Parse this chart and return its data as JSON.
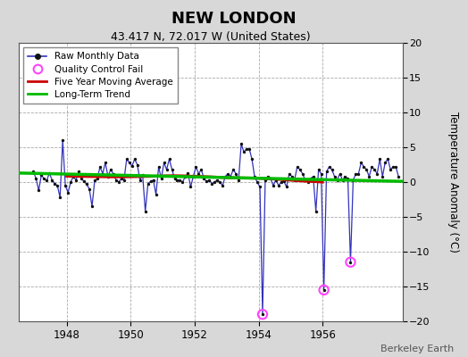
{
  "title": "NEW LONDON",
  "subtitle": "43.417 N, 72.017 W (United States)",
  "ylabel": "Temperature Anomaly (°C)",
  "credit": "Berkeley Earth",
  "xlim": [
    1946.5,
    1958.5
  ],
  "ylim": [
    -20,
    20
  ],
  "yticks": [
    -20,
    -15,
    -10,
    -5,
    0,
    5,
    10,
    15,
    20
  ],
  "xticks": [
    1948,
    1950,
    1952,
    1954,
    1956
  ],
  "bg_color": "#d8d8d8",
  "plot_bg_color": "#ffffff",
  "raw_color": "#3333bb",
  "dot_color": "#111111",
  "ma_color": "#cc0000",
  "trend_color": "#00bb00",
  "qc_color": "#ff44ff",
  "raw_data": [
    [
      1946.958,
      1.5
    ],
    [
      1947.042,
      0.5
    ],
    [
      1947.125,
      -1.2
    ],
    [
      1947.208,
      1.0
    ],
    [
      1947.292,
      0.5
    ],
    [
      1947.375,
      0.2
    ],
    [
      1947.458,
      1.3
    ],
    [
      1947.542,
      0.3
    ],
    [
      1947.625,
      -0.2
    ],
    [
      1947.708,
      -0.5
    ],
    [
      1947.792,
      -2.2
    ],
    [
      1947.875,
      6.0
    ],
    [
      1947.958,
      -0.5
    ],
    [
      1948.042,
      -1.5
    ],
    [
      1948.125,
      0.0
    ],
    [
      1948.208,
      0.8
    ],
    [
      1948.292,
      0.3
    ],
    [
      1948.375,
      1.5
    ],
    [
      1948.458,
      0.5
    ],
    [
      1948.542,
      0.1
    ],
    [
      1948.625,
      -0.3
    ],
    [
      1948.708,
      -1.0
    ],
    [
      1948.792,
      -3.5
    ],
    [
      1948.875,
      0.2
    ],
    [
      1948.958,
      0.5
    ],
    [
      1949.042,
      2.2
    ],
    [
      1949.125,
      1.2
    ],
    [
      1949.208,
      2.8
    ],
    [
      1949.292,
      0.8
    ],
    [
      1949.375,
      1.8
    ],
    [
      1949.458,
      1.2
    ],
    [
      1949.542,
      0.3
    ],
    [
      1949.625,
      0.0
    ],
    [
      1949.708,
      0.5
    ],
    [
      1949.792,
      0.3
    ],
    [
      1949.875,
      3.3
    ],
    [
      1949.958,
      2.8
    ],
    [
      1950.042,
      2.3
    ],
    [
      1950.125,
      3.3
    ],
    [
      1950.208,
      2.5
    ],
    [
      1950.292,
      0.3
    ],
    [
      1950.375,
      1.0
    ],
    [
      1950.458,
      -4.2
    ],
    [
      1950.542,
      -0.2
    ],
    [
      1950.625,
      0.1
    ],
    [
      1950.708,
      0.3
    ],
    [
      1950.792,
      -1.8
    ],
    [
      1950.875,
      2.2
    ],
    [
      1950.958,
      0.5
    ],
    [
      1951.042,
      2.8
    ],
    [
      1951.125,
      1.8
    ],
    [
      1951.208,
      3.3
    ],
    [
      1951.292,
      1.8
    ],
    [
      1951.375,
      0.5
    ],
    [
      1951.458,
      0.3
    ],
    [
      1951.542,
      0.3
    ],
    [
      1951.625,
      0.0
    ],
    [
      1951.708,
      0.8
    ],
    [
      1951.792,
      1.3
    ],
    [
      1951.875,
      -0.7
    ],
    [
      1951.958,
      0.8
    ],
    [
      1952.042,
      2.2
    ],
    [
      1952.125,
      1.2
    ],
    [
      1952.208,
      1.8
    ],
    [
      1952.292,
      0.5
    ],
    [
      1952.375,
      0.1
    ],
    [
      1952.458,
      0.3
    ],
    [
      1952.542,
      -0.2
    ],
    [
      1952.625,
      0.0
    ],
    [
      1952.708,
      0.3
    ],
    [
      1952.792,
      0.0
    ],
    [
      1952.875,
      -0.5
    ],
    [
      1952.958,
      0.8
    ],
    [
      1953.042,
      1.2
    ],
    [
      1953.125,
      0.8
    ],
    [
      1953.208,
      1.8
    ],
    [
      1953.292,
      1.2
    ],
    [
      1953.375,
      0.3
    ],
    [
      1953.458,
      5.5
    ],
    [
      1953.542,
      4.3
    ],
    [
      1953.625,
      4.8
    ],
    [
      1953.708,
      4.8
    ],
    [
      1953.792,
      3.3
    ],
    [
      1953.875,
      0.8
    ],
    [
      1953.958,
      0.0
    ],
    [
      1954.042,
      -0.7
    ],
    [
      1954.125,
      -19.0
    ],
    [
      1954.208,
      0.3
    ],
    [
      1954.292,
      0.8
    ],
    [
      1954.375,
      0.5
    ],
    [
      1954.458,
      -0.5
    ],
    [
      1954.542,
      0.3
    ],
    [
      1954.625,
      -0.5
    ],
    [
      1954.708,
      0.0
    ],
    [
      1954.792,
      0.1
    ],
    [
      1954.875,
      -0.7
    ],
    [
      1954.958,
      1.2
    ],
    [
      1955.042,
      0.8
    ],
    [
      1955.125,
      0.3
    ],
    [
      1955.208,
      2.2
    ],
    [
      1955.292,
      1.8
    ],
    [
      1955.375,
      1.2
    ],
    [
      1955.458,
      0.3
    ],
    [
      1955.542,
      0.0
    ],
    [
      1955.625,
      0.5
    ],
    [
      1955.708,
      0.8
    ],
    [
      1955.792,
      -4.2
    ],
    [
      1955.875,
      1.8
    ],
    [
      1955.958,
      1.2
    ],
    [
      1956.042,
      -15.5
    ],
    [
      1956.125,
      1.5
    ],
    [
      1956.208,
      2.2
    ],
    [
      1956.292,
      1.8
    ],
    [
      1956.375,
      0.8
    ],
    [
      1956.458,
      0.3
    ],
    [
      1956.542,
      1.2
    ],
    [
      1956.625,
      0.3
    ],
    [
      1956.708,
      0.8
    ],
    [
      1956.792,
      0.5
    ],
    [
      1956.875,
      -11.5
    ],
    [
      1956.958,
      0.3
    ],
    [
      1957.042,
      1.2
    ],
    [
      1957.125,
      1.2
    ],
    [
      1957.208,
      2.8
    ],
    [
      1957.292,
      2.2
    ],
    [
      1957.375,
      1.8
    ],
    [
      1957.458,
      0.8
    ],
    [
      1957.542,
      2.2
    ],
    [
      1957.625,
      1.8
    ],
    [
      1957.708,
      1.2
    ],
    [
      1957.792,
      3.3
    ],
    [
      1957.875,
      0.8
    ],
    [
      1957.958,
      2.8
    ],
    [
      1958.042,
      3.3
    ],
    [
      1958.125,
      1.8
    ],
    [
      1958.208,
      2.2
    ],
    [
      1958.292,
      2.2
    ],
    [
      1958.375,
      0.8
    ]
  ],
  "qc_fail_points": [
    [
      1954.125,
      -19.0
    ],
    [
      1956.042,
      -15.5
    ],
    [
      1956.875,
      -11.5
    ]
  ],
  "moving_avg": [
    [
      1948.0,
      0.85
    ],
    [
      1948.3,
      0.82
    ],
    [
      1948.6,
      0.8
    ],
    [
      1948.9,
      0.78
    ],
    [
      1949.2,
      0.76
    ],
    [
      1949.5,
      0.74
    ],
    [
      1949.8,
      0.75
    ],
    [
      1950.1,
      0.77
    ],
    [
      1950.4,
      0.8
    ],
    [
      1950.7,
      0.83
    ],
    [
      1951.0,
      0.88
    ],
    [
      1951.3,
      0.92
    ],
    [
      1951.6,
      0.9
    ],
    [
      1951.9,
      0.85
    ],
    [
      1952.2,
      0.8
    ],
    [
      1952.5,
      0.75
    ],
    [
      1952.8,
      0.68
    ],
    [
      1953.1,
      0.63
    ],
    [
      1953.4,
      0.6
    ],
    [
      1953.7,
      0.58
    ],
    [
      1954.0,
      0.55
    ],
    [
      1954.3,
      0.48
    ],
    [
      1954.6,
      0.4
    ],
    [
      1954.9,
      0.3
    ],
    [
      1955.2,
      0.2
    ],
    [
      1955.5,
      0.12
    ],
    [
      1955.8,
      0.05
    ],
    [
      1956.0,
      0.0
    ]
  ],
  "trend_x": [
    1946.5,
    1958.5
  ],
  "trend_y": [
    1.3,
    0.1
  ]
}
